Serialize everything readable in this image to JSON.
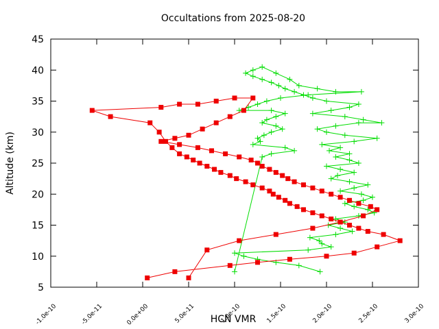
{
  "chart_data": {
    "type": "line",
    "title": "Occultations from 2025-08-20",
    "xlabel": "HCN VMR",
    "ylabel": "Altitude (km)",
    "xlim": [
      -1e-10,
      3e-10
    ],
    "ylim": [
      5,
      45
    ],
    "x_ticks": [
      -1e-10,
      -5e-11,
      0,
      5e-11,
      1e-10,
      1.5e-10,
      2e-10,
      2.5e-10,
      3e-10
    ],
    "x_tick_labels": [
      "-1.0e-10",
      "-5.0e-11",
      "0.0e+00",
      "5.0e-11",
      "1.0e-10",
      "1.5e-10",
      "2.0e-10",
      "2.5e-10",
      "3.0e-10"
    ],
    "y_ticks": [
      5,
      10,
      15,
      20,
      25,
      30,
      35,
      40,
      45
    ],
    "y_tick_labels": [
      "5",
      "10",
      "15",
      "20",
      "25",
      "30",
      "35",
      "40",
      "45"
    ],
    "grid": false,
    "legend": "none",
    "series": [
      {
        "color": "#00dd00",
        "marker": "plus",
        "x": [
          1.93e-10,
          1.7e-10,
          1.45e-10,
          1.25e-10,
          1.1e-10,
          1e-10,
          1.8e-10,
          2.05e-10,
          1.95e-10,
          1.92e-10,
          1.82e-10,
          2.1e-10,
          2.28e-10,
          2.15e-10,
          2.02e-10,
          2.2e-10,
          2.1e-10,
          2.35e-10,
          2.52e-10,
          2.45e-10,
          2.3e-10,
          2.2e-10,
          2.4e-10,
          2.5e-10,
          2.38e-10,
          2.15e-10,
          2.3e-10,
          2.45e-10,
          2.25e-10,
          2.05e-10,
          2.12e-10,
          2.3e-10,
          2.15e-10,
          2e-10,
          2.35e-10,
          2.25e-10,
          2.1e-10,
          2.25e-10,
          2.03e-10,
          2.15e-10,
          1.95e-10,
          2.3e-10,
          2.55e-10,
          2.2e-10,
          2e-10,
          1.9e-10,
          2.1e-10,
          2.35e-10,
          2.6e-10,
          2.4e-10,
          2.2e-10,
          1.85e-10,
          2.05e-10,
          2.25e-10,
          2.35e-10,
          2e-10,
          1.85e-10,
          1.75e-10,
          1.65e-10,
          1.55e-10,
          1.48e-10,
          1.4e-10,
          1.3e-10,
          1.2e-10,
          1.12e-10,
          1.2e-10,
          1.3e-10,
          1.45e-10,
          1.6e-10,
          1.7e-10,
          1.9e-10,
          2.1e-10,
          2.38e-10,
          1.8e-10,
          1.5e-10,
          1.35e-10,
          1.25e-10,
          1.15e-10,
          1.05e-10,
          1.4e-10,
          1.55e-10,
          1.45e-10,
          1.35e-10,
          1.3e-10,
          1.45e-10,
          1.52e-10,
          1.4e-10,
          1.32e-10,
          1.25e-10,
          1.28e-10,
          1.2e-10,
          1.55e-10,
          1.65e-10,
          1.4e-10,
          1.3e-10,
          1e-10
        ],
        "y": [
          7.5,
          8.5,
          9.0,
          9.5,
          10.0,
          10.5,
          11.0,
          11.5,
          12.0,
          12.5,
          13.0,
          13.5,
          14.0,
          14.5,
          15.0,
          15.5,
          16.0,
          16.5,
          17.0,
          17.5,
          18.0,
          18.5,
          19.0,
          19.5,
          20.0,
          20.5,
          21.0,
          21.5,
          22.0,
          22.5,
          23.0,
          23.5,
          24.0,
          24.5,
          25.0,
          25.5,
          26.0,
          26.5,
          27.0,
          27.5,
          28.0,
          28.5,
          29.0,
          29.5,
          30.0,
          30.5,
          31.0,
          31.5,
          31.5,
          32.0,
          32.5,
          33.0,
          33.5,
          34.0,
          34.5,
          35.0,
          35.5,
          36.0,
          36.5,
          37.0,
          37.5,
          38.0,
          38.5,
          39.0,
          39.5,
          40.0,
          40.5,
          39.5,
          38.5,
          37.5,
          37.0,
          36.5,
          36.5,
          36.0,
          35.5,
          35.0,
          34.5,
          34.0,
          33.5,
          33.5,
          33.0,
          32.5,
          32.0,
          31.5,
          31.0,
          30.5,
          30.0,
          29.5,
          29.0,
          28.5,
          28.0,
          27.5,
          27.0,
          26.5,
          26.0,
          7.5
        ]
      },
      {
        "color": "#ee0000",
        "marker": "square",
        "x": [
          5e-12,
          3.5e-11,
          9.5e-11,
          1.25e-10,
          1.6e-10,
          2e-10,
          2.3e-10,
          2.55e-10,
          2.8e-10,
          2.62e-10,
          2.45e-10,
          2.35e-10,
          2.25e-10,
          2.15e-10,
          2.05e-10,
          1.95e-10,
          1.85e-10,
          1.75e-10,
          1.68e-10,
          1.6e-10,
          1.55e-10,
          1.48e-10,
          1.42e-10,
          1.38e-10,
          1.3e-10,
          1.2e-10,
          1.12e-10,
          1.02e-10,
          9.5e-11,
          8.5e-11,
          7.8e-11,
          7e-11,
          6.2e-11,
          5.5e-11,
          4.8e-11,
          4e-11,
          3.2e-11,
          2.5e-11,
          1.8e-11,
          8e-12,
          -3.5e-11,
          -5.5e-11,
          2e-11,
          4e-11,
          6e-11,
          8e-11,
          1e-10,
          1.2e-10,
          1.1e-10,
          9.5e-11,
          8e-11,
          6.5e-11,
          5e-11,
          3.5e-11,
          2e-11,
          4e-11,
          6e-11,
          7.5e-11,
          9e-11,
          1.05e-10,
          1.18e-10,
          1.25e-10,
          1.3e-10,
          1.38e-10,
          1.45e-10,
          1.52e-10,
          1.58e-10,
          1.65e-10,
          1.75e-10,
          1.85e-10,
          1.95e-10,
          2.05e-10,
          2.15e-10,
          2.25e-10,
          2.35e-10,
          2.48e-10,
          2.55e-10,
          2.4e-10,
          2.15e-10,
          1.85e-10,
          1.45e-10,
          1.05e-10,
          7e-11,
          5e-11
        ],
        "y": [
          6.5,
          7.5,
          8.5,
          9.0,
          9.5,
          10.0,
          10.5,
          11.5,
          12.5,
          13.5,
          14.0,
          14.5,
          15.0,
          15.5,
          16.0,
          16.5,
          17.0,
          17.5,
          18.0,
          18.5,
          19.0,
          19.5,
          20.0,
          20.5,
          21.0,
          21.5,
          22.0,
          22.5,
          23.0,
          23.5,
          24.0,
          24.5,
          25.0,
          25.5,
          26.0,
          26.5,
          27.5,
          28.5,
          30.0,
          31.5,
          32.5,
          33.5,
          34.0,
          34.5,
          34.5,
          35.0,
          35.5,
          35.5,
          33.5,
          32.5,
          31.5,
          30.5,
          29.5,
          29.0,
          28.5,
          28.0,
          27.5,
          27.0,
          26.5,
          26.0,
          25.5,
          25.0,
          24.5,
          24.0,
          23.5,
          23.0,
          22.5,
          22.0,
          21.5,
          21.0,
          20.5,
          20.0,
          19.5,
          19.0,
          18.5,
          18.0,
          17.5,
          16.5,
          15.5,
          14.5,
          13.5,
          12.5,
          11.0,
          6.5
        ]
      }
    ]
  }
}
